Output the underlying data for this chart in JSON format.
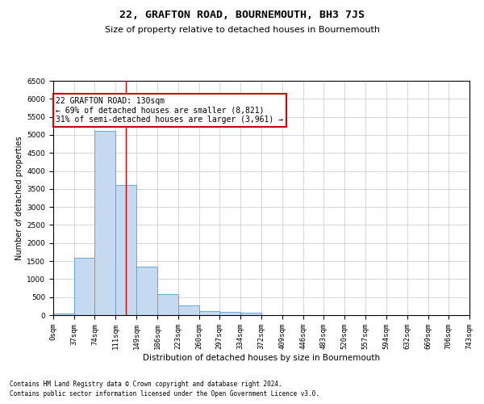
{
  "title": "22, GRAFTON ROAD, BOURNEMOUTH, BH3 7JS",
  "subtitle": "Size of property relative to detached houses in Bournemouth",
  "xlabel": "Distribution of detached houses by size in Bournemouth",
  "ylabel": "Number of detached properties",
  "footnote1": "Contains HM Land Registry data © Crown copyright and database right 2024.",
  "footnote2": "Contains public sector information licensed under the Open Government Licence v3.0.",
  "annotation_title": "22 GRAFTON ROAD: 130sqm",
  "annotation_line1": "← 69% of detached houses are smaller (8,821)",
  "annotation_line2": "31% of semi-detached houses are larger (3,961) →",
  "bar_color": "#c5d9f0",
  "bar_edge_color": "#5b9bd5",
  "grid_color": "#c0c8d8",
  "vline_color": "#cc0000",
  "annotation_box_color": "#ffffff",
  "annotation_box_edge": "#cc0000",
  "bins": [
    0,
    37,
    74,
    111,
    149,
    186,
    223,
    260,
    297,
    334,
    372,
    409,
    446,
    483,
    520,
    557,
    594,
    632,
    669,
    706,
    743
  ],
  "values": [
    50,
    1600,
    5100,
    3600,
    1350,
    575,
    270,
    120,
    100,
    75,
    10,
    5,
    5,
    3,
    2,
    1,
    0,
    0,
    0,
    0
  ],
  "property_size": 130,
  "ylim": [
    0,
    6500
  ],
  "yticks": [
    0,
    500,
    1000,
    1500,
    2000,
    2500,
    3000,
    3500,
    4000,
    4500,
    5000,
    5500,
    6000,
    6500
  ],
  "title_fontsize": 9.5,
  "subtitle_fontsize": 8,
  "tick_fontsize": 6.5,
  "ylabel_fontsize": 7,
  "xlabel_fontsize": 7.5,
  "annotation_fontsize": 7,
  "footnote_fontsize": 5.5
}
